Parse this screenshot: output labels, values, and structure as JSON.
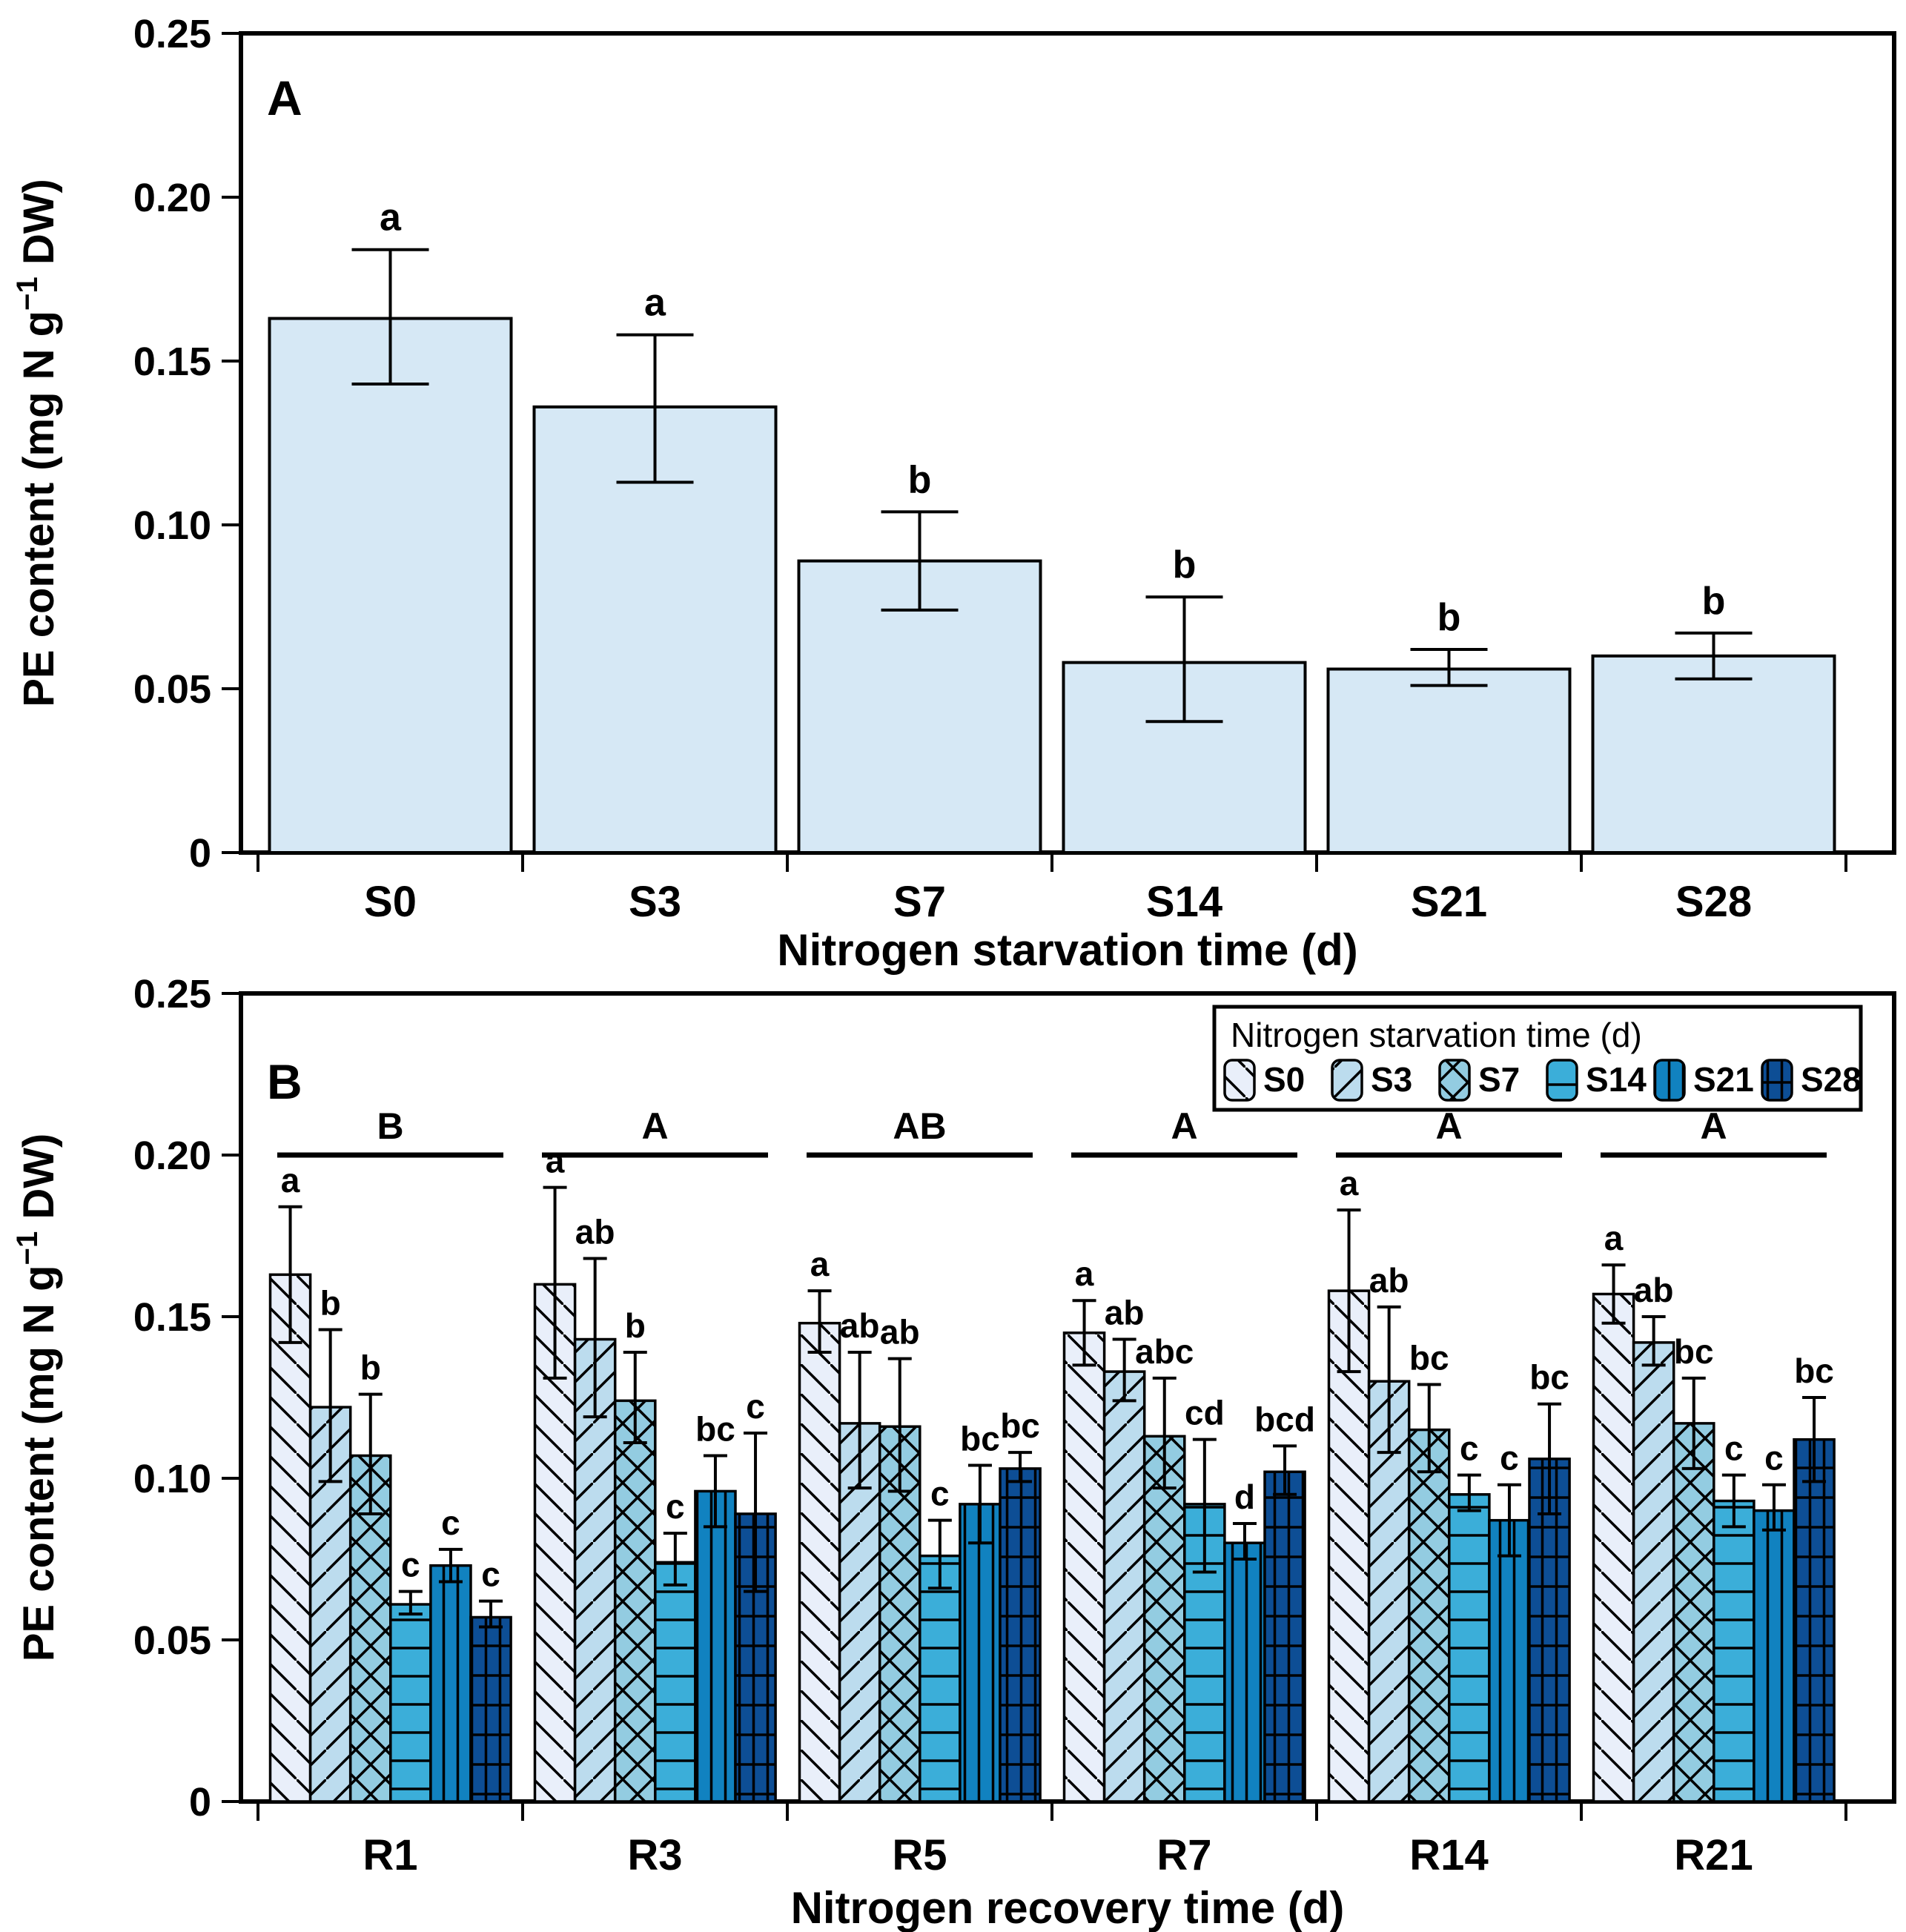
{
  "figure": {
    "ylabel": "PE content (mg N g−1 DW)",
    "ylabel_parts": {
      "pre": "PE content (mg N g",
      "sup": "−1",
      "post": " DW)"
    },
    "panel_a_letter": "A",
    "panel_b_letter": "B",
    "colors": {
      "panel_a_bar_fill": "#D6E8F5",
      "bar_edge": "#000000",
      "background": "#ffffff",
      "axis": "#000000"
    }
  },
  "chart_data": [
    {
      "type": "bar",
      "panel": "A",
      "title": "",
      "xlabel": "Nitrogen starvation time (d)",
      "ylabel": "PE content (mg N g−1 DW)",
      "ylim": [
        0,
        0.25
      ],
      "yticks": [
        0,
        0.05,
        0.1,
        0.15,
        0.2,
        0.25
      ],
      "ytick_labels": [
        "0",
        "0.05",
        "0.10",
        "0.15",
        "0.20",
        "0.25"
      ],
      "grid": false,
      "categories": [
        "S0",
        "S3",
        "S7",
        "S14",
        "S21",
        "S28"
      ],
      "values": [
        0.163,
        0.136,
        0.089,
        0.058,
        0.056,
        0.06
      ],
      "error_low": [
        0.143,
        0.113,
        0.074,
        0.04,
        0.051,
        0.053
      ],
      "error_high": [
        0.184,
        0.158,
        0.104,
        0.078,
        0.062,
        0.067
      ],
      "sig_letters": [
        "a",
        "a",
        "b",
        "b",
        "b",
        "b"
      ],
      "bar_color": "#D6E8F5"
    },
    {
      "type": "grouped-bar",
      "panel": "B",
      "title": "",
      "xlabel": "Nitrogen recovery time (d)",
      "ylabel": "PE content (mg N g−1 DW)",
      "ylim": [
        0,
        0.25
      ],
      "yticks": [
        0,
        0.05,
        0.1,
        0.15,
        0.2,
        0.25
      ],
      "ytick_labels": [
        "0",
        "0.05",
        "0.10",
        "0.15",
        "0.20",
        "0.25"
      ],
      "grid": false,
      "legend_title": "Nitrogen starvation time (d)",
      "legend_position": "top-right-inside",
      "categories": [
        "R1",
        "R3",
        "R5",
        "R7",
        "R14",
        "R21"
      ],
      "group_sig_letters": [
        "B",
        "A",
        "AB",
        "A",
        "A",
        "A"
      ],
      "group_sig_line_value": 0.2,
      "series": [
        {
          "name": "S0",
          "color": "#E9EFFA",
          "hatch": "diagonal-down",
          "values": [
            0.163,
            0.16,
            0.148,
            0.145,
            0.158,
            0.157
          ],
          "error_low": [
            0.142,
            0.131,
            0.139,
            0.135,
            0.133,
            0.148
          ],
          "error_high": [
            0.184,
            0.19,
            0.158,
            0.155,
            0.183,
            0.166
          ],
          "letters": [
            "a",
            "a",
            "a",
            "a",
            "a",
            "a"
          ]
        },
        {
          "name": "S3",
          "color": "#BCDCEE",
          "hatch": "diagonal-up",
          "values": [
            0.122,
            0.143,
            0.117,
            0.133,
            0.13,
            0.142
          ],
          "error_low": [
            0.099,
            0.119,
            0.097,
            0.124,
            0.108,
            0.135
          ],
          "error_high": [
            0.146,
            0.168,
            0.139,
            0.143,
            0.153,
            0.15
          ],
          "letters": [
            "b",
            "ab",
            "ab",
            "ab",
            "ab",
            "ab"
          ]
        },
        {
          "name": "S7",
          "color": "#93CCE1",
          "hatch": "cross-diagonal",
          "values": [
            0.107,
            0.124,
            0.116,
            0.113,
            0.115,
            0.117
          ],
          "error_low": [
            0.089,
            0.111,
            0.096,
            0.097,
            0.102,
            0.103
          ],
          "error_high": [
            0.126,
            0.139,
            0.137,
            0.131,
            0.129,
            0.131
          ],
          "letters": [
            "b",
            "b",
            "ab",
            "abc",
            "bc",
            "bc"
          ]
        },
        {
          "name": "S14",
          "color": "#3BAED9",
          "hatch": "horizontal",
          "values": [
            0.061,
            0.074,
            0.076,
            0.092,
            0.095,
            0.093
          ],
          "error_low": [
            0.058,
            0.067,
            0.066,
            0.071,
            0.09,
            0.085
          ],
          "error_high": [
            0.065,
            0.083,
            0.087,
            0.112,
            0.101,
            0.101
          ],
          "letters": [
            "c",
            "c",
            "c",
            "cd",
            "c",
            "c"
          ]
        },
        {
          "name": "S21",
          "color": "#1182C0",
          "hatch": "vertical",
          "values": [
            0.073,
            0.096,
            0.092,
            0.08,
            0.087,
            0.09
          ],
          "error_low": [
            0.068,
            0.085,
            0.08,
            0.075,
            0.076,
            0.084
          ],
          "error_high": [
            0.078,
            0.107,
            0.104,
            0.086,
            0.098,
            0.098
          ],
          "letters": [
            "c",
            "bc",
            "bc",
            "d",
            "c",
            "c"
          ]
        },
        {
          "name": "S28",
          "color": "#0D4E95",
          "hatch": "grid",
          "values": [
            0.057,
            0.089,
            0.103,
            0.102,
            0.106,
            0.112
          ],
          "error_low": [
            0.054,
            0.065,
            0.099,
            0.095,
            0.089,
            0.099
          ],
          "error_high": [
            0.062,
            0.114,
            0.108,
            0.11,
            0.123,
            0.125
          ],
          "letters": [
            "c",
            "c",
            "bc",
            "bcd",
            "bc",
            "bc"
          ]
        }
      ]
    }
  ]
}
